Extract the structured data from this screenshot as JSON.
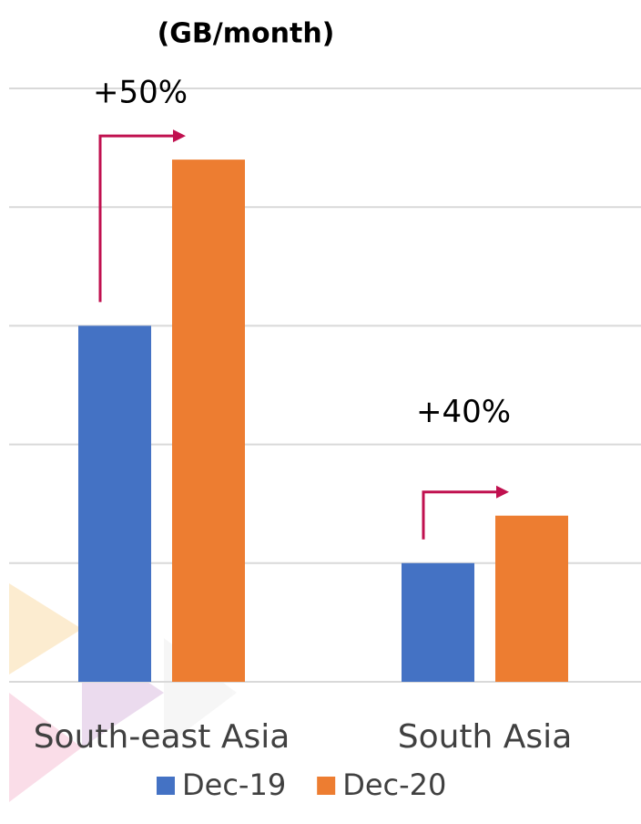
{
  "chart_data": {
    "type": "bar",
    "title": "(GB/month)",
    "categories": [
      "South-east Asia",
      "South Asia"
    ],
    "series": [
      {
        "name": "Dec-19",
        "color": "#4472c4",
        "values": [
          3,
          1
        ]
      },
      {
        "name": "Dec-20",
        "color": "#ed7d31",
        "values": [
          4.4,
          1.4
        ]
      }
    ],
    "ylim": [
      0,
      5
    ],
    "yticks": [
      0,
      1,
      2,
      3,
      4,
      5
    ],
    "grid": true,
    "annotations": [
      "+50%",
      "+40%"
    ],
    "legend": "bottom"
  }
}
